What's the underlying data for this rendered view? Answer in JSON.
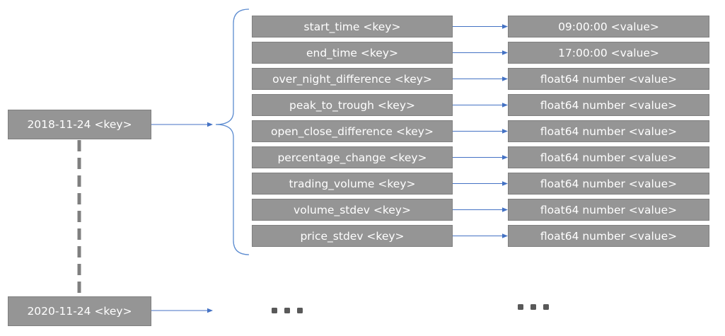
{
  "dates": [
    {
      "label": "2018-11-24 <key>"
    },
    {
      "label": "2020-11-24 <key>"
    }
  ],
  "pairs": [
    {
      "key": "start_time <key>",
      "value": "09:00:00 <value>"
    },
    {
      "key": "end_time <key>",
      "value": "17:00:00 <value>"
    },
    {
      "key": "over_night_difference <key>",
      "value": "float64 number <value>"
    },
    {
      "key": "peak_to_trough  <key>",
      "value": "float64 number <value>"
    },
    {
      "key": "open_close_difference <key>",
      "value": "float64 number <value>"
    },
    {
      "key": "percentage_change <key>",
      "value": "float64 number <value>"
    },
    {
      "key": "trading_volume  <key>",
      "value": "float64 number <value>"
    },
    {
      "key": "volume_stdev <key>",
      "value": "float64 number <value>"
    },
    {
      "key": "price_stdev <key>",
      "value": "float64 number <value>"
    }
  ],
  "colors": {
    "box_fill": "#959595",
    "box_text": "#ffffff",
    "arrow": "#4472c4",
    "dashed": "#7f7f7f",
    "brace": "#5b8bd0",
    "dots": "#595959"
  }
}
